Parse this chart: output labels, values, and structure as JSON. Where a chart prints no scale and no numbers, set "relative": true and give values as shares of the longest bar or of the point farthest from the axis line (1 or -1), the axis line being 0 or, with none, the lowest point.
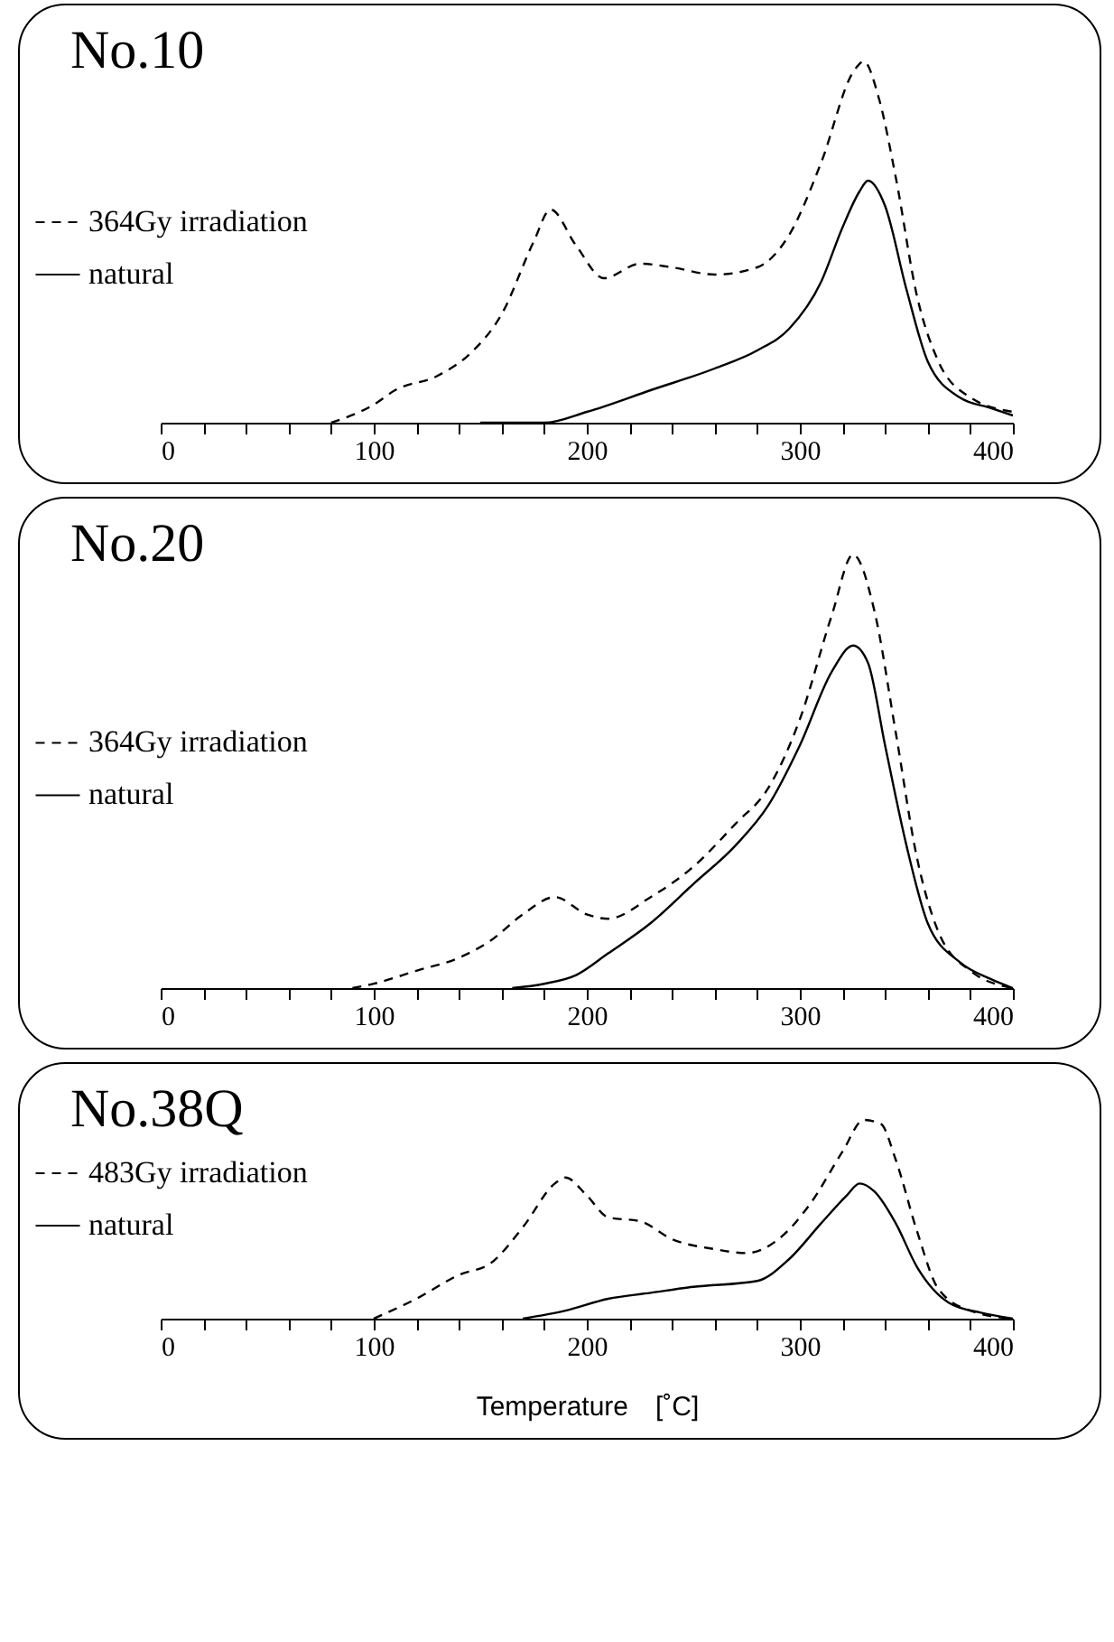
{
  "chart_data": [
    {
      "type": "line",
      "title": "No.10",
      "relative": true,
      "legend": "left",
      "tick_labels": "x",
      "xlim": [
        0,
        400
      ],
      "xticks": [
        0,
        {
          "value": 20,
          "label": null
        },
        {
          "value": 40,
          "label": null
        },
        {
          "value": 60,
          "label": null
        },
        {
          "value": 80,
          "label": null
        },
        100,
        {
          "value": 120,
          "label": null
        },
        {
          "value": 140,
          "label": null
        },
        {
          "value": 160,
          "label": null
        },
        {
          "value": 180,
          "label": null
        },
        200,
        {
          "value": 220,
          "label": null
        },
        {
          "value": 240,
          "label": null
        },
        {
          "value": 260,
          "label": null
        },
        {
          "value": 280,
          "label": null
        },
        300,
        {
          "value": 320,
          "label": null
        },
        {
          "value": 340,
          "label": null
        },
        {
          "value": 360,
          "label": null
        },
        {
          "value": 380,
          "label": null
        },
        400
      ],
      "series": [
        {
          "name": "364Gy irradiation",
          "color": "#000000",
          "line_style": "dashed",
          "x": [
            80,
            100,
            110,
            130,
            145,
            160,
            175,
            183,
            195,
            208,
            225,
            240,
            260,
            280,
            295,
            310,
            325,
            330,
            337,
            345,
            355,
            365,
            380,
            400
          ],
          "values": [
            0,
            0.05,
            0.09,
            0.13,
            0.19,
            0.3,
            0.5,
            0.59,
            0.49,
            0.4,
            0.44,
            0.43,
            0.41,
            0.43,
            0.52,
            0.72,
            0.97,
            1,
            0.9,
            0.68,
            0.35,
            0.17,
            0.07,
            0.03
          ]
        },
        {
          "name": "natural",
          "color": "#000000",
          "line_style": "solid",
          "x": [
            150,
            180,
            200,
            230,
            260,
            280,
            295,
            310,
            320,
            328,
            332,
            340,
            350,
            360,
            375,
            390,
            400
          ],
          "values": [
            0,
            0,
            0.03,
            0.09,
            0.15,
            0.2,
            0.26,
            0.39,
            0.54,
            0.64,
            0.67,
            0.6,
            0.37,
            0.17,
            0.07,
            0.04,
            0.02
          ]
        }
      ]
    },
    {
      "type": "line",
      "title": "No.20",
      "relative": true,
      "legend": "left",
      "tick_labels": "x",
      "xlim": [
        0,
        400
      ],
      "xticks": [
        0,
        {
          "value": 20,
          "label": null
        },
        {
          "value": 40,
          "label": null
        },
        {
          "value": 60,
          "label": null
        },
        {
          "value": 80,
          "label": null
        },
        100,
        {
          "value": 120,
          "label": null
        },
        {
          "value": 140,
          "label": null
        },
        {
          "value": 160,
          "label": null
        },
        {
          "value": 180,
          "label": null
        },
        200,
        {
          "value": 220,
          "label": null
        },
        {
          "value": 240,
          "label": null
        },
        {
          "value": 260,
          "label": null
        },
        {
          "value": 280,
          "label": null
        },
        300,
        {
          "value": 320,
          "label": null
        },
        {
          "value": 340,
          "label": null
        },
        {
          "value": 360,
          "label": null
        },
        {
          "value": 380,
          "label": null
        },
        400
      ],
      "series": [
        {
          "name": "364Gy irradiation",
          "color": "#000000",
          "line_style": "dashed",
          "x": [
            90,
            100,
            120,
            140,
            155,
            170,
            185,
            200,
            210,
            230,
            250,
            270,
            285,
            300,
            315,
            325,
            335,
            345,
            355,
            365,
            380,
            400
          ],
          "values": [
            0,
            0.01,
            0.04,
            0.07,
            0.11,
            0.17,
            0.21,
            0.17,
            0.16,
            0.21,
            0.28,
            0.38,
            0.46,
            0.62,
            0.86,
            1,
            0.87,
            0.59,
            0.3,
            0.13,
            0.04,
            0
          ]
        },
        {
          "name": "natural",
          "color": "#000000",
          "line_style": "solid",
          "x": [
            165,
            180,
            195,
            210,
            230,
            250,
            270,
            285,
            300,
            315,
            325,
            332,
            340,
            350,
            360,
            375,
            390,
            400
          ],
          "values": [
            0,
            0.01,
            0.03,
            0.08,
            0.15,
            0.24,
            0.33,
            0.42,
            0.56,
            0.73,
            0.79,
            0.75,
            0.56,
            0.33,
            0.15,
            0.06,
            0.02,
            0
          ]
        }
      ]
    },
    {
      "type": "line",
      "title": "No.38Q",
      "xlabel": "Temperature　[˚C]",
      "relative": true,
      "legend": "left",
      "tick_labels": "x",
      "xlim": [
        0,
        400
      ],
      "xticks": [
        0,
        {
          "value": 20,
          "label": null
        },
        {
          "value": 40,
          "label": null
        },
        {
          "value": 60,
          "label": null
        },
        {
          "value": 80,
          "label": null
        },
        100,
        {
          "value": 120,
          "label": null
        },
        {
          "value": 140,
          "label": null
        },
        {
          "value": 160,
          "label": null
        },
        {
          "value": 180,
          "label": null
        },
        200,
        {
          "value": 220,
          "label": null
        },
        {
          "value": 240,
          "label": null
        },
        {
          "value": 260,
          "label": null
        },
        {
          "value": 280,
          "label": null
        },
        300,
        {
          "value": 320,
          "label": null
        },
        {
          "value": 340,
          "label": null
        },
        {
          "value": 360,
          "label": null
        },
        {
          "value": 380,
          "label": null
        },
        400
      ],
      "series": [
        {
          "name": "483Gy  irradiation",
          "color": "#000000",
          "line_style": "dashed",
          "x": [
            100,
            120,
            140,
            155,
            170,
            185,
            190,
            200,
            210,
            225,
            240,
            260,
            275,
            290,
            305,
            320,
            330,
            338,
            345,
            355,
            365,
            380,
            400
          ],
          "values": [
            0,
            0.1,
            0.22,
            0.28,
            0.46,
            0.68,
            0.71,
            0.62,
            0.51,
            0.49,
            0.4,
            0.35,
            0.33,
            0.4,
            0.58,
            0.84,
            1,
            0.98,
            0.8,
            0.44,
            0.15,
            0.04,
            0
          ]
        },
        {
          "name": "natural",
          "color": "#000000",
          "line_style": "solid",
          "x": [
            170,
            190,
            210,
            230,
            250,
            280,
            295,
            310,
            322,
            328,
            335,
            345,
            355,
            370,
            385,
            400
          ],
          "values": [
            0,
            0.04,
            0.1,
            0.13,
            0.16,
            0.19,
            0.3,
            0.48,
            0.62,
            0.68,
            0.64,
            0.48,
            0.26,
            0.08,
            0.03,
            0
          ]
        }
      ]
    }
  ]
}
